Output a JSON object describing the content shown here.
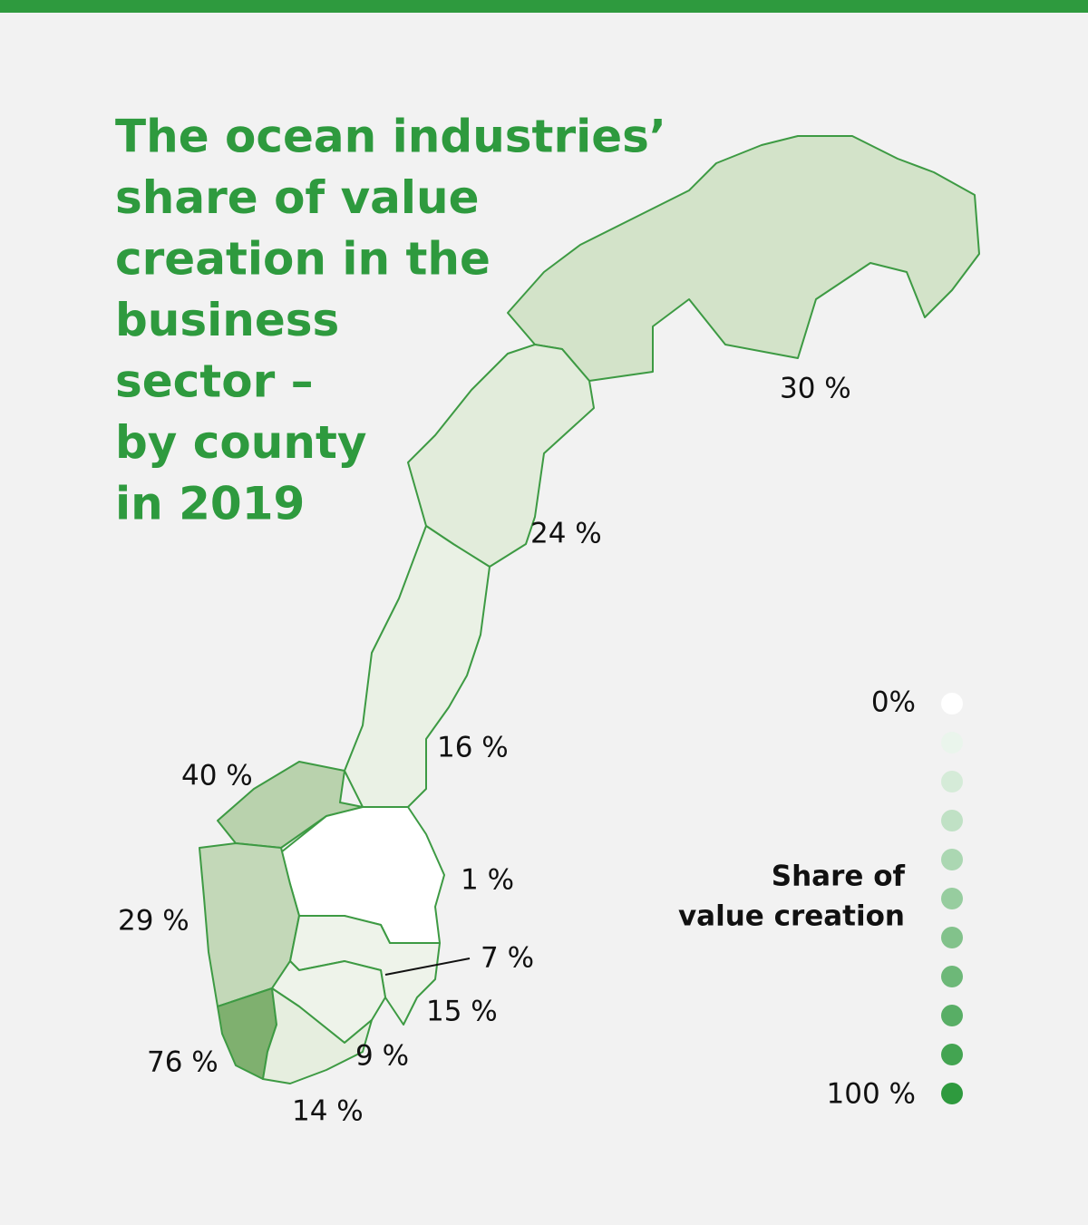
{
  "title": [
    "The ocean industries’",
    "share of value",
    "creation in the",
    "business",
    "sector –",
    "by county",
    "in 2019"
  ],
  "counties": [
    {
      "label": "30 %"
    },
    {
      "label": "24 %"
    },
    {
      "label": "16 %"
    },
    {
      "label": "40 %"
    },
    {
      "label": "1 %"
    },
    {
      "label": "29 %"
    },
    {
      "label": "7 %"
    },
    {
      "label": "15 %"
    },
    {
      "label": "76 %"
    },
    {
      "label": "9 %"
    },
    {
      "label": "14 %"
    }
  ],
  "legend": {
    "min": "0%",
    "max": "100 %",
    "heading": [
      "Share of",
      "value creation"
    ]
  }
}
